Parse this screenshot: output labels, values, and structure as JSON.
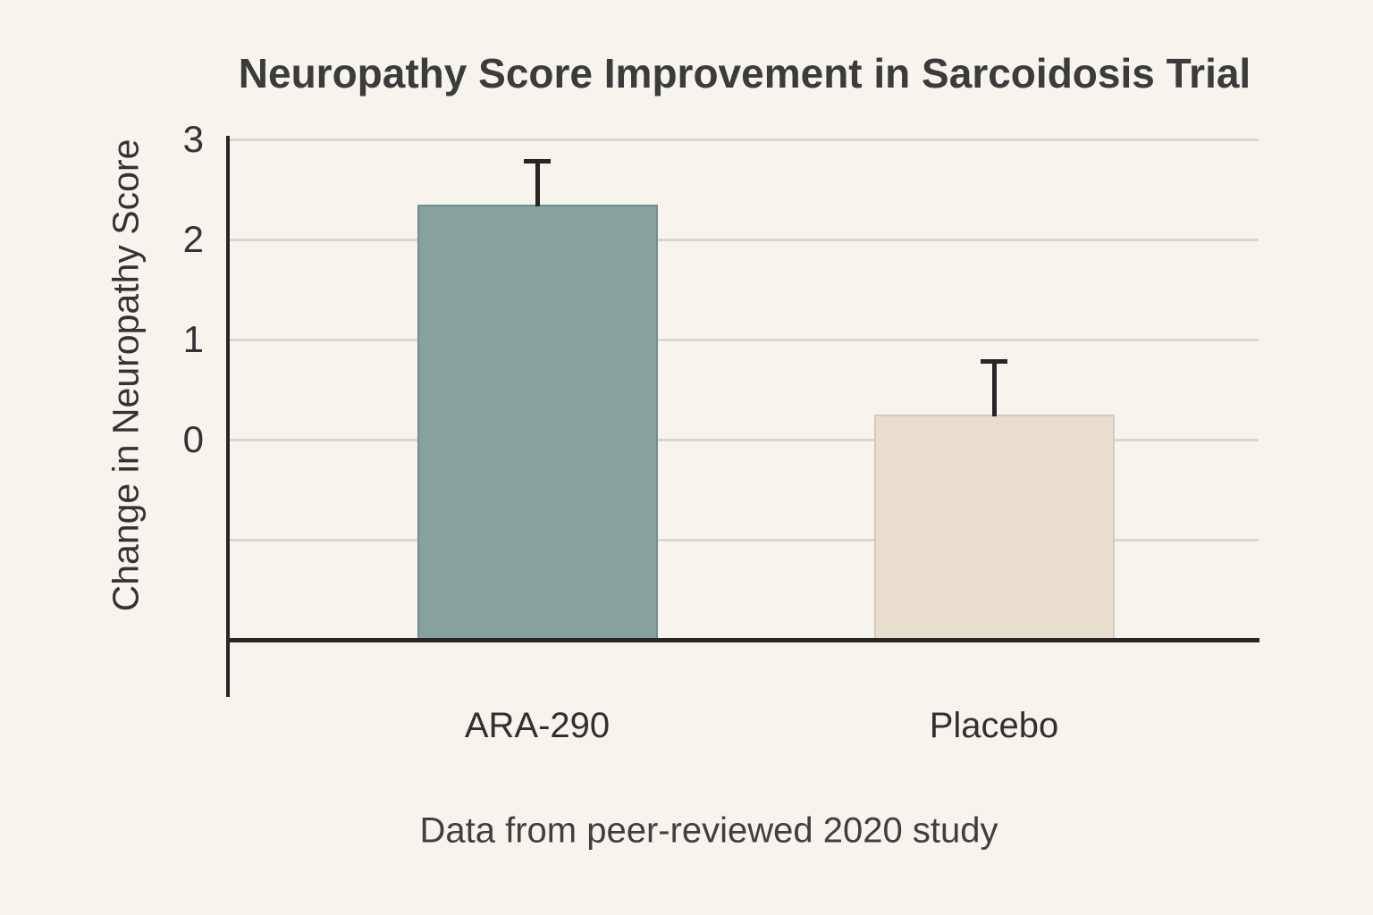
{
  "chart_data": {
    "type": "bar",
    "title": "Neuropathy Score Improvement in Sarcoidosis Trial",
    "ylabel": "Change in Neuropathy Score",
    "xlabel": "",
    "caption": "Data from peer-reviewed 2020 study",
    "categories": [
      "ARA-290",
      "Placebo"
    ],
    "values": [
      2.35,
      0.25
    ],
    "error_plus": [
      0.45,
      0.55
    ],
    "yticks": [
      3,
      2,
      1,
      0
    ],
    "gridline_values": [
      3,
      2,
      1,
      0,
      -1
    ],
    "ylim": [
      -2,
      3
    ],
    "grid": true,
    "legend_position": "none",
    "colors": {
      "background": "#f7f4ee",
      "bar_fills": [
        "#86a19e",
        "#e7decf"
      ],
      "bar_edges": [
        "#6f8e8c",
        "#d5cabb"
      ],
      "error_bar": "#262626",
      "axis": "#262626",
      "gridline": "#dad7d1",
      "text": "#333333",
      "title_text": "#3b3b3b"
    }
  }
}
